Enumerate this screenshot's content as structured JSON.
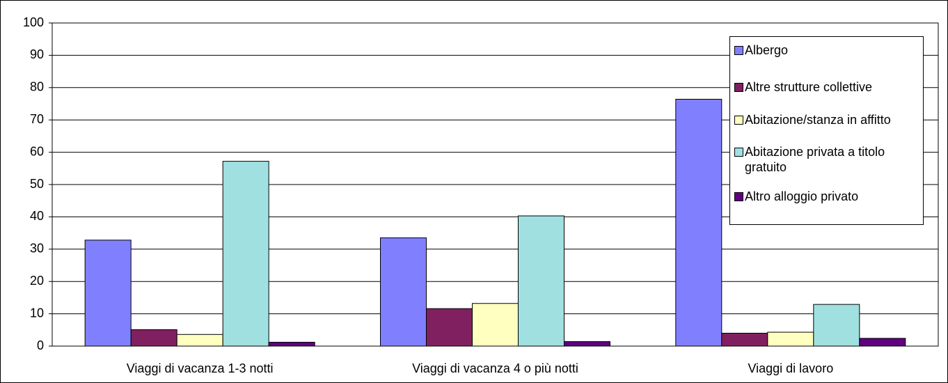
{
  "chart_data": {
    "type": "bar",
    "categories": [
      "Viaggi di vacanza 1-3 notti",
      "Viaggi di vacanza 4 o più notti",
      "Viaggi di lavoro"
    ],
    "series": [
      {
        "name": "Albergo",
        "color": "#8080ff",
        "values": [
          32.8,
          33.5,
          76.4
        ]
      },
      {
        "name": "Altre strutture collettive",
        "color": "#802060",
        "values": [
          5.1,
          11.6,
          4.0
        ]
      },
      {
        "name": "Abitazione/stanza in affitto",
        "color": "#ffffc0",
        "values": [
          3.6,
          13.2,
          4.3
        ]
      },
      {
        "name": "Abitazione privata a titolo gratuito",
        "color": "#a0e0e0",
        "values": [
          57.2,
          40.3,
          12.9
        ]
      },
      {
        "name": "Altro alloggio privato",
        "color": "#600080",
        "values": [
          1.2,
          1.4,
          2.4
        ]
      }
    ],
    "ylim": [
      0,
      100
    ],
    "yticks": [
      0,
      10,
      20,
      30,
      40,
      50,
      60,
      70,
      80,
      90,
      100
    ],
    "grid": true,
    "legend": "top-right"
  }
}
